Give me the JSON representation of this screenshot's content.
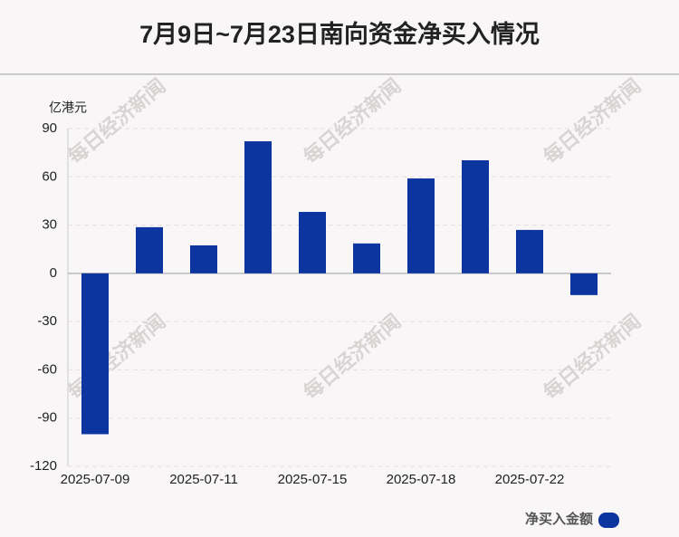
{
  "chart_data": {
    "type": "bar",
    "title": "7月9日~7月23日南向资金净买入情况",
    "y_unit": "亿港元",
    "watermark": "每日经济新闻",
    "categories": [
      "2025-07-09",
      null,
      "2025-07-11",
      null,
      "2025-07-15",
      null,
      "2025-07-18",
      null,
      "2025-07-22",
      null
    ],
    "series": [
      {
        "name": "净买入金额",
        "color": "#0d35a0",
        "values": [
          -100,
          28.7,
          17.4,
          82.1,
          38.2,
          18.6,
          59,
          70.3,
          27,
          -13.5
        ]
      }
    ],
    "ylim": [
      -120,
      90
    ],
    "yticks": [
      -120,
      -90,
      -60,
      -30,
      0,
      30,
      60,
      90
    ],
    "grid": true,
    "legend": "bottom-right"
  }
}
